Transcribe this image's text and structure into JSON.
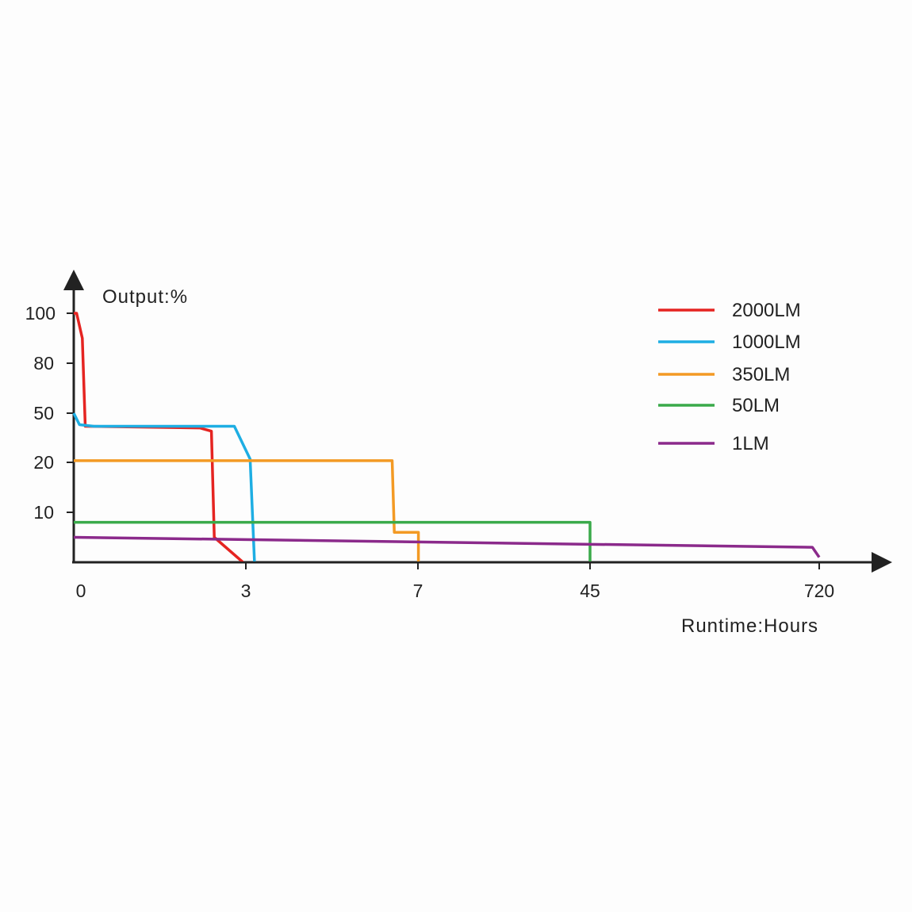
{
  "chart_data": {
    "type": "line",
    "ylabel": "Output:%",
    "xlabel": "Runtime:Hours",
    "y_ticks": [
      "100",
      "80",
      "50",
      "20",
      "10"
    ],
    "x_ticks": [
      "0",
      "3",
      "7",
      "45",
      "720"
    ],
    "x_axis_scale": "non-linear (categorical breakpoints 0, 3, 7, 45, 720)",
    "y_axis_scale": "non-linear (breakpoints 10, 20, 50, 80, 100)",
    "legend_position": "top-right",
    "grid": false,
    "series": [
      {
        "name": "2000LM",
        "color": "#e52421",
        "points": [
          [
            0,
            100
          ],
          [
            0.05,
            100
          ],
          [
            0.15,
            90
          ],
          [
            0.2,
            42
          ],
          [
            2.2,
            41
          ],
          [
            2.4,
            39
          ],
          [
            2.45,
            5
          ],
          [
            2.95,
            0
          ]
        ]
      },
      {
        "name": "1000LM",
        "color": "#1eaee3",
        "points": [
          [
            0,
            50
          ],
          [
            0.1,
            43
          ],
          [
            0.35,
            42
          ],
          [
            2.8,
            42
          ],
          [
            3.1,
            22
          ],
          [
            3.2,
            0
          ]
        ]
      },
      {
        "name": "350LM",
        "color": "#f39a24",
        "points": [
          [
            0,
            21
          ],
          [
            6.4,
            21
          ],
          [
            6.45,
            6
          ],
          [
            7.1,
            6
          ],
          [
            7.1,
            0
          ]
        ]
      },
      {
        "name": "50LM",
        "color": "#3aaa4a",
        "points": [
          [
            0,
            8
          ],
          [
            45,
            8
          ],
          [
            45,
            0
          ]
        ]
      },
      {
        "name": "1LM",
        "color": "#8b2a8b",
        "points": [
          [
            0,
            5
          ],
          [
            700,
            3
          ],
          [
            720,
            1
          ]
        ]
      }
    ]
  }
}
